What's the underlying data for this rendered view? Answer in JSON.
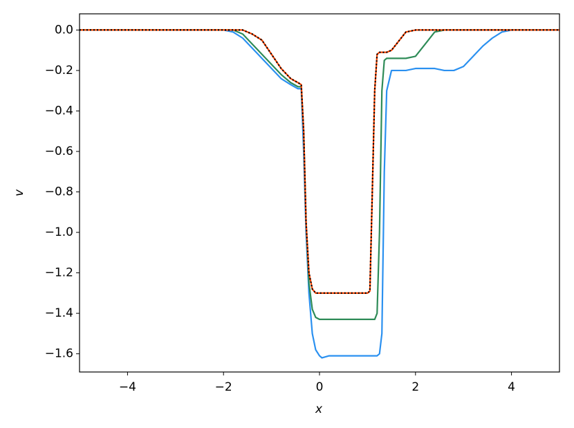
{
  "chart_data": {
    "type": "line",
    "xlabel": "x",
    "ylabel": "v",
    "xlim": [
      -5,
      5
    ],
    "ylim": [
      -1.69,
      0.08
    ],
    "xticks": [
      {
        "value": -4,
        "label": "−4"
      },
      {
        "value": -2,
        "label": "−2"
      },
      0,
      2,
      4
    ],
    "yticks": [
      {
        "value": -1.6,
        "label": "−1.6"
      },
      {
        "value": -1.4,
        "label": "−1.4"
      },
      {
        "value": -1.2,
        "label": "−1.2"
      },
      {
        "value": -1.0,
        "label": "−1.0"
      },
      {
        "value": -0.8,
        "label": "−0.8"
      },
      {
        "value": -0.6,
        "label": "−0.6"
      },
      {
        "value": -0.4,
        "label": "−0.4"
      },
      {
        "value": -0.2,
        "label": "−0.2"
      },
      {
        "value": 0,
        "label": "0.0"
      }
    ],
    "x": [
      -5,
      -2,
      -1.8,
      -1.6,
      -1.4,
      -1.2,
      -1,
      -0.8,
      -0.6,
      -0.45,
      -0.38,
      -0.33,
      -0.28,
      -0.22,
      -0.15,
      -0.08,
      0,
      0.05,
      0.2,
      0.5,
      0.8,
      1.0,
      1.05,
      1.1,
      1.15,
      1.2,
      1.25,
      1.3,
      1.35,
      1.4,
      1.5,
      1.6,
      1.8,
      2.0,
      2.2,
      2.4,
      2.6,
      2.8,
      3.0,
      3.2,
      3.4,
      3.6,
      3.8,
      4.0,
      5
    ],
    "series": [
      {
        "color": "#2a90f0",
        "linestyle": "solid",
        "values": [
          0,
          0,
          -0.01,
          -0.04,
          -0.09,
          -0.14,
          -0.19,
          -0.24,
          -0.27,
          -0.29,
          -0.29,
          -0.6,
          -1.0,
          -1.3,
          -1.5,
          -1.58,
          -1.61,
          -1.62,
          -1.61,
          -1.61,
          -1.61,
          -1.61,
          -1.61,
          -1.61,
          -1.61,
          -1.61,
          -1.6,
          -1.5,
          -0.7,
          -0.3,
          -0.2,
          -0.2,
          -0.2,
          -0.19,
          -0.19,
          -0.19,
          -0.2,
          -0.2,
          -0.18,
          -0.13,
          -0.08,
          -0.04,
          -0.01,
          0,
          0
        ]
      },
      {
        "color": "#2e8b57",
        "linestyle": "solid",
        "values": [
          0,
          0,
          0,
          -0.02,
          -0.07,
          -0.12,
          -0.17,
          -0.22,
          -0.26,
          -0.28,
          -0.28,
          -0.5,
          -0.95,
          -1.25,
          -1.38,
          -1.42,
          -1.43,
          -1.43,
          -1.43,
          -1.43,
          -1.43,
          -1.43,
          -1.43,
          -1.43,
          -1.43,
          -1.4,
          -1.0,
          -0.3,
          -0.15,
          -0.14,
          -0.14,
          -0.14,
          -0.14,
          -0.13,
          -0.07,
          -0.01,
          0,
          0,
          0,
          0,
          0,
          0,
          0,
          0,
          0
        ]
      },
      {
        "color": "#ff4500",
        "linestyle": "solid",
        "values": [
          0,
          0,
          0,
          0,
          -0.02,
          -0.05,
          -0.12,
          -0.19,
          -0.24,
          -0.26,
          -0.27,
          -0.5,
          -0.95,
          -1.2,
          -1.28,
          -1.3,
          -1.3,
          -1.3,
          -1.3,
          -1.3,
          -1.3,
          -1.3,
          -1.29,
          -0.8,
          -0.3,
          -0.12,
          -0.11,
          -0.11,
          -0.11,
          -0.11,
          -0.1,
          -0.07,
          -0.01,
          0,
          0,
          0,
          0,
          0,
          0,
          0,
          0,
          0,
          0,
          0,
          0
        ]
      },
      {
        "color": "#000000",
        "linestyle": "dotted",
        "values": [
          0,
          0,
          0,
          0,
          -0.02,
          -0.05,
          -0.12,
          -0.19,
          -0.24,
          -0.26,
          -0.27,
          -0.5,
          -0.95,
          -1.2,
          -1.28,
          -1.3,
          -1.3,
          -1.3,
          -1.3,
          -1.3,
          -1.3,
          -1.3,
          -1.29,
          -0.8,
          -0.3,
          -0.12,
          -0.11,
          -0.11,
          -0.11,
          -0.11,
          -0.1,
          -0.07,
          -0.01,
          0,
          0,
          0,
          0,
          0,
          0,
          0,
          0,
          0,
          0,
          0,
          0
        ]
      }
    ]
  }
}
